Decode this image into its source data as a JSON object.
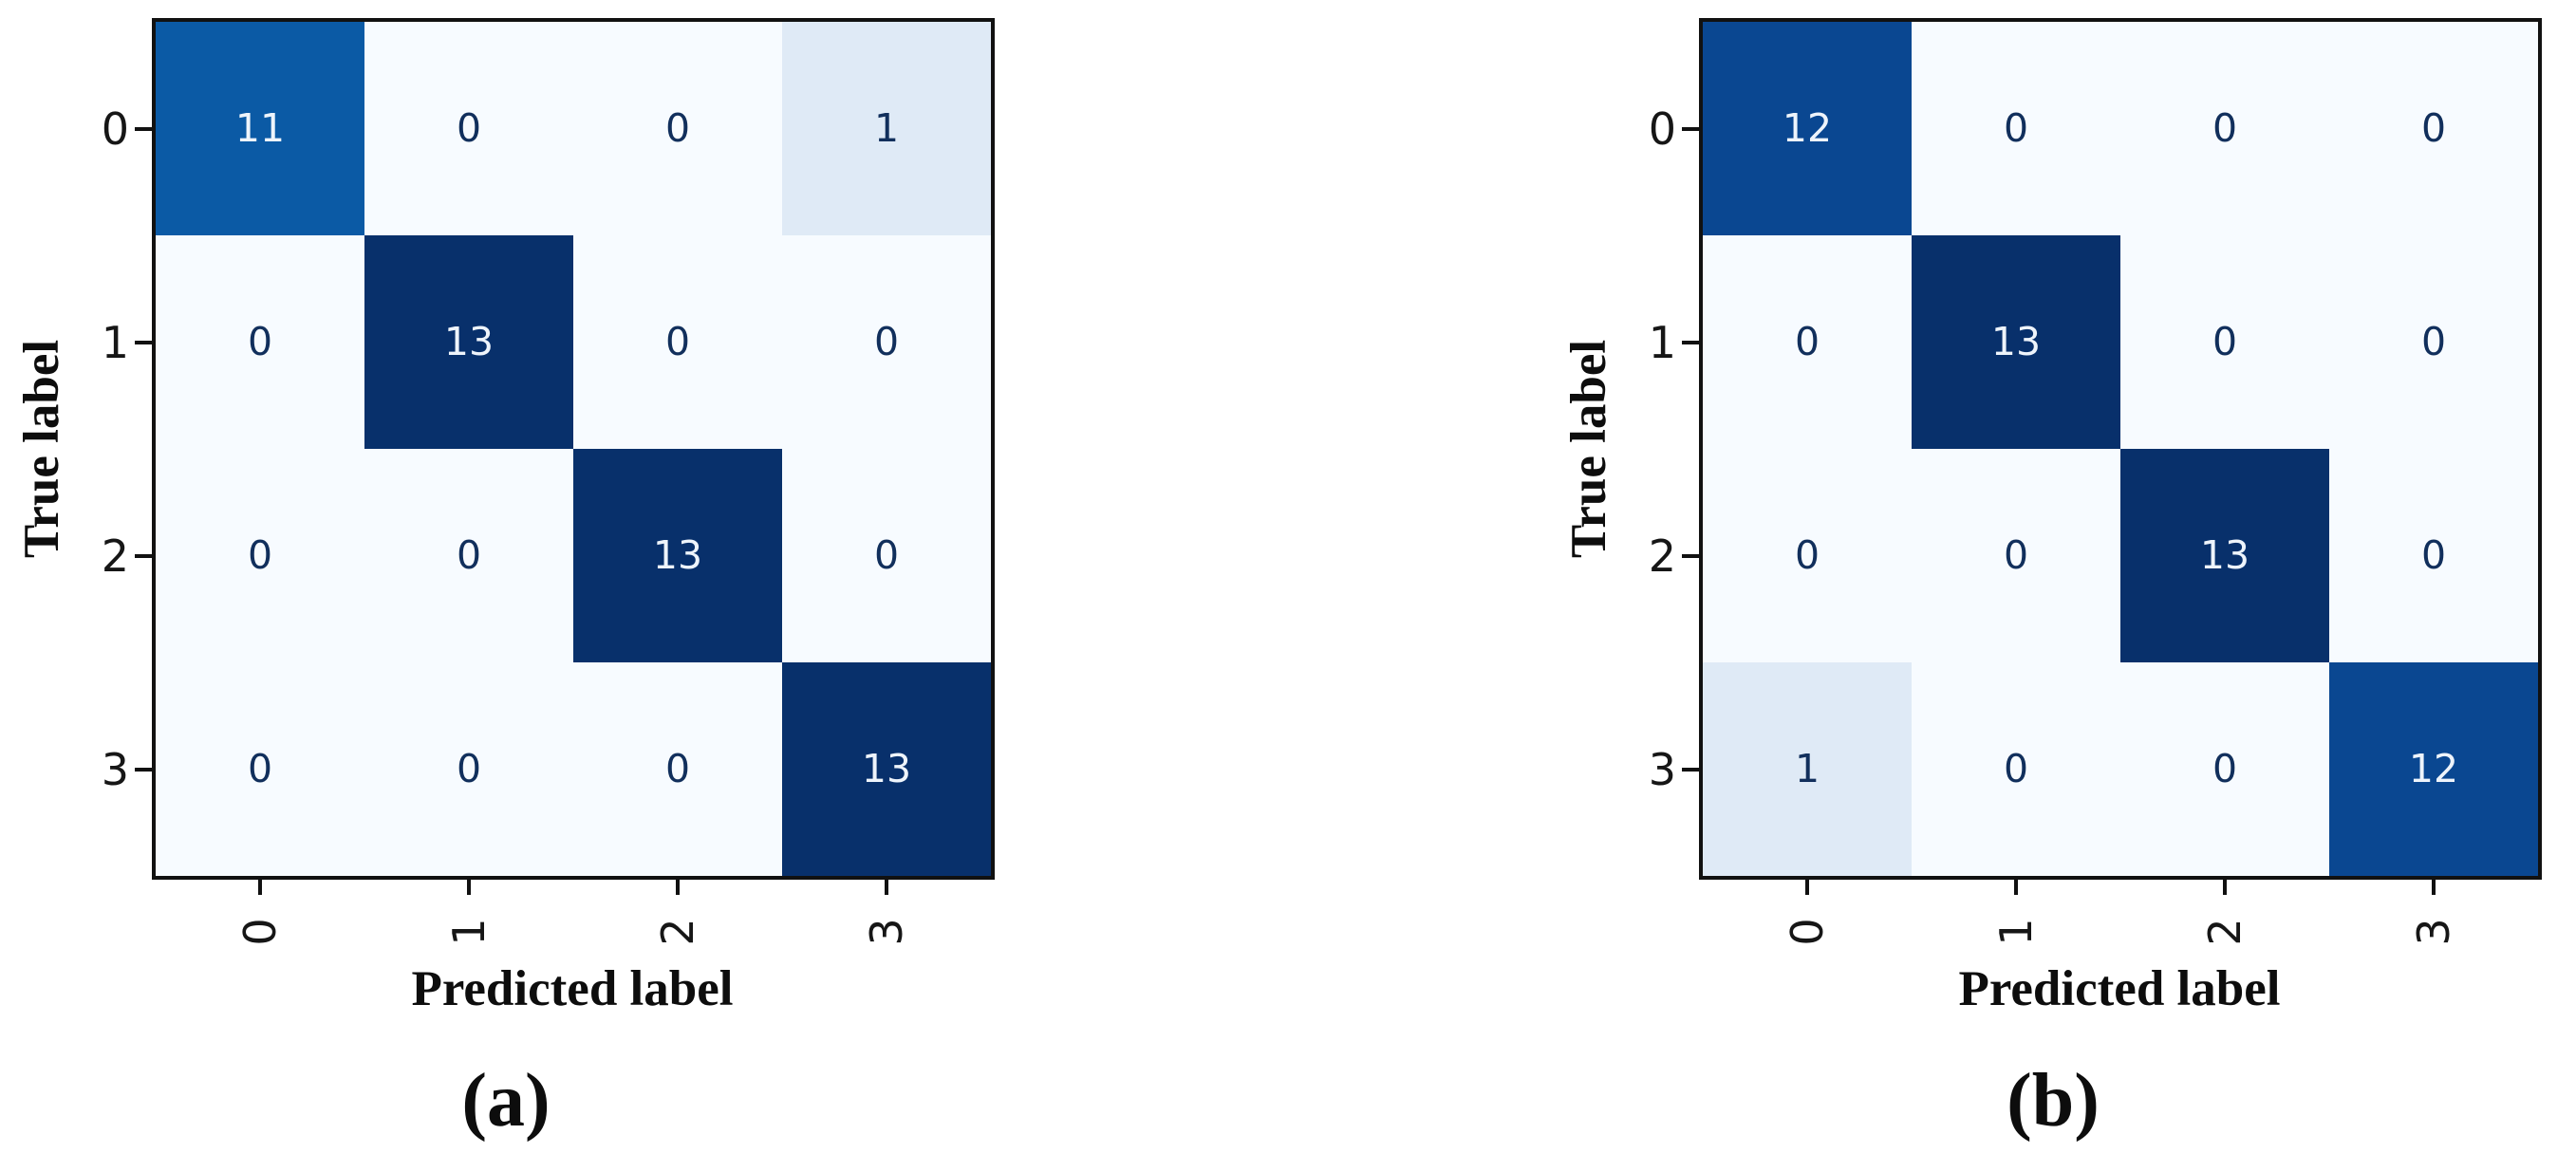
{
  "figure": {
    "value_colors": {
      "0": "#f7fbff",
      "1": "#dfeaf6",
      "11": "#0b5aa5",
      "12": "#0a4791",
      "13": "#08306b"
    },
    "light_text_color": "#eef4fb",
    "dark_text_color": "#112f5c",
    "light_text_threshold": 7,
    "panels": [
      {
        "caption": "(a)",
        "xlabel": "Predicted label",
        "ylabel": "True label",
        "x_ticks": [
          "0",
          "1",
          "2",
          "3"
        ],
        "y_ticks": [
          "0",
          "1",
          "2",
          "3"
        ],
        "matrix": [
          [
            11,
            0,
            0,
            1
          ],
          [
            0,
            13,
            0,
            0
          ],
          [
            0,
            0,
            13,
            0
          ],
          [
            0,
            0,
            0,
            13
          ]
        ]
      },
      {
        "caption": "(b)",
        "xlabel": "Predicted label",
        "ylabel": "True label",
        "x_ticks": [
          "0",
          "1",
          "2",
          "3"
        ],
        "y_ticks": [
          "0",
          "1",
          "2",
          "3"
        ],
        "matrix": [
          [
            12,
            0,
            0,
            0
          ],
          [
            0,
            13,
            0,
            0
          ],
          [
            0,
            0,
            13,
            0
          ],
          [
            1,
            0,
            0,
            12
          ]
        ]
      }
    ]
  },
  "chart_data": [
    {
      "type": "heatmap",
      "title": "(a)",
      "xlabel": "Predicted label",
      "ylabel": "True label",
      "x_tick_labels": [
        "0",
        "1",
        "2",
        "3"
      ],
      "y_tick_labels": [
        "0",
        "1",
        "2",
        "3"
      ],
      "matrix": [
        [
          11,
          0,
          0,
          1
        ],
        [
          0,
          13,
          0,
          0
        ],
        [
          0,
          0,
          13,
          0
        ],
        [
          0,
          0,
          0,
          13
        ]
      ],
      "colormap": "Blues",
      "vmin": 0,
      "vmax": 13,
      "x_tick_rotation_deg": 90,
      "grid": false,
      "legend": "none"
    },
    {
      "type": "heatmap",
      "title": "(b)",
      "xlabel": "Predicted label",
      "ylabel": "True label",
      "x_tick_labels": [
        "0",
        "1",
        "2",
        "3"
      ],
      "y_tick_labels": [
        "0",
        "1",
        "2",
        "3"
      ],
      "matrix": [
        [
          12,
          0,
          0,
          0
        ],
        [
          0,
          13,
          0,
          0
        ],
        [
          0,
          0,
          13,
          0
        ],
        [
          1,
          0,
          0,
          12
        ]
      ],
      "colormap": "Blues",
      "vmin": 0,
      "vmax": 13,
      "x_tick_rotation_deg": 90,
      "grid": false,
      "legend": "none"
    }
  ]
}
